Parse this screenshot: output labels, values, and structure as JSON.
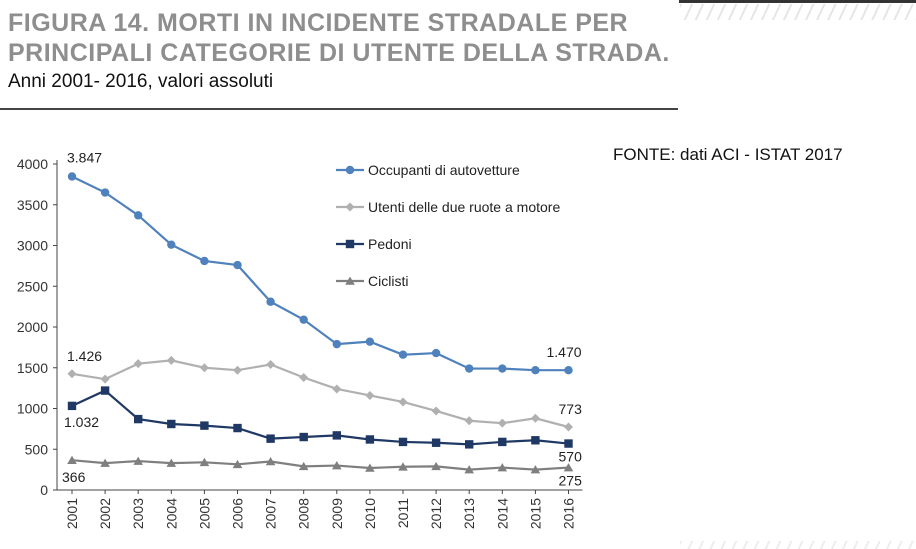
{
  "title_line1": "FIGURA 14. MORTI IN INCIDENTE STRADALE PER",
  "title_line2": "PRINCIPALI CATEGORIE DI UTENTE DELLA STRADA.",
  "subtitle": "Anni 2001- 2016, valori assoluti",
  "source": "FONTE: dati ACI - ISTAT 2017",
  "chart_data": {
    "type": "line",
    "x": [
      "2001",
      "2002",
      "2003",
      "2004",
      "2005",
      "2006",
      "2007",
      "2008",
      "2009",
      "2010",
      "2011",
      "2012",
      "2013",
      "2014",
      "2015",
      "2016"
    ],
    "ylim": [
      0,
      4000
    ],
    "yticks": [
      "0",
      "500",
      "1000",
      "1500",
      "2000",
      "2500",
      "3000",
      "3500",
      "4000"
    ],
    "grid": false,
    "legend_position": "top-right",
    "series": [
      {
        "name": "Occupanti di autovetture",
        "color": "#4f81bd",
        "marker": "circle",
        "values": [
          3847,
          3650,
          3370,
          3010,
          2810,
          2760,
          2310,
          2090,
          1790,
          1820,
          1660,
          1680,
          1490,
          1490,
          1470,
          1470
        ]
      },
      {
        "name": "Utenti delle due ruote a motore",
        "color": "#b0b0b0",
        "marker": "diamond",
        "values": [
          1426,
          1360,
          1550,
          1590,
          1500,
          1470,
          1540,
          1380,
          1240,
          1160,
          1080,
          970,
          850,
          820,
          880,
          773
        ]
      },
      {
        "name": "Pedoni",
        "color": "#1f3864",
        "marker": "square",
        "values": [
          1032,
          1220,
          870,
          810,
          790,
          760,
          630,
          650,
          670,
          620,
          590,
          580,
          560,
          590,
          610,
          570
        ]
      },
      {
        "name": "Ciclisti",
        "color": "#7f7f7f",
        "marker": "triangle",
        "values": [
          366,
          330,
          355,
          330,
          340,
          315,
          350,
          290,
          300,
          270,
          285,
          290,
          250,
          275,
          250,
          275
        ]
      }
    ],
    "data_labels": [
      {
        "series": 0,
        "index": 0,
        "text": "3.847"
      },
      {
        "series": 0,
        "index": 15,
        "text": "1.470"
      },
      {
        "series": 1,
        "index": 0,
        "text": "1.426"
      },
      {
        "series": 1,
        "index": 15,
        "text": "773"
      },
      {
        "series": 2,
        "index": 0,
        "text": "1.032"
      },
      {
        "series": 2,
        "index": 15,
        "text": "570"
      },
      {
        "series": 3,
        "index": 0,
        "text": "366"
      },
      {
        "series": 3,
        "index": 15,
        "text": "275"
      }
    ]
  }
}
